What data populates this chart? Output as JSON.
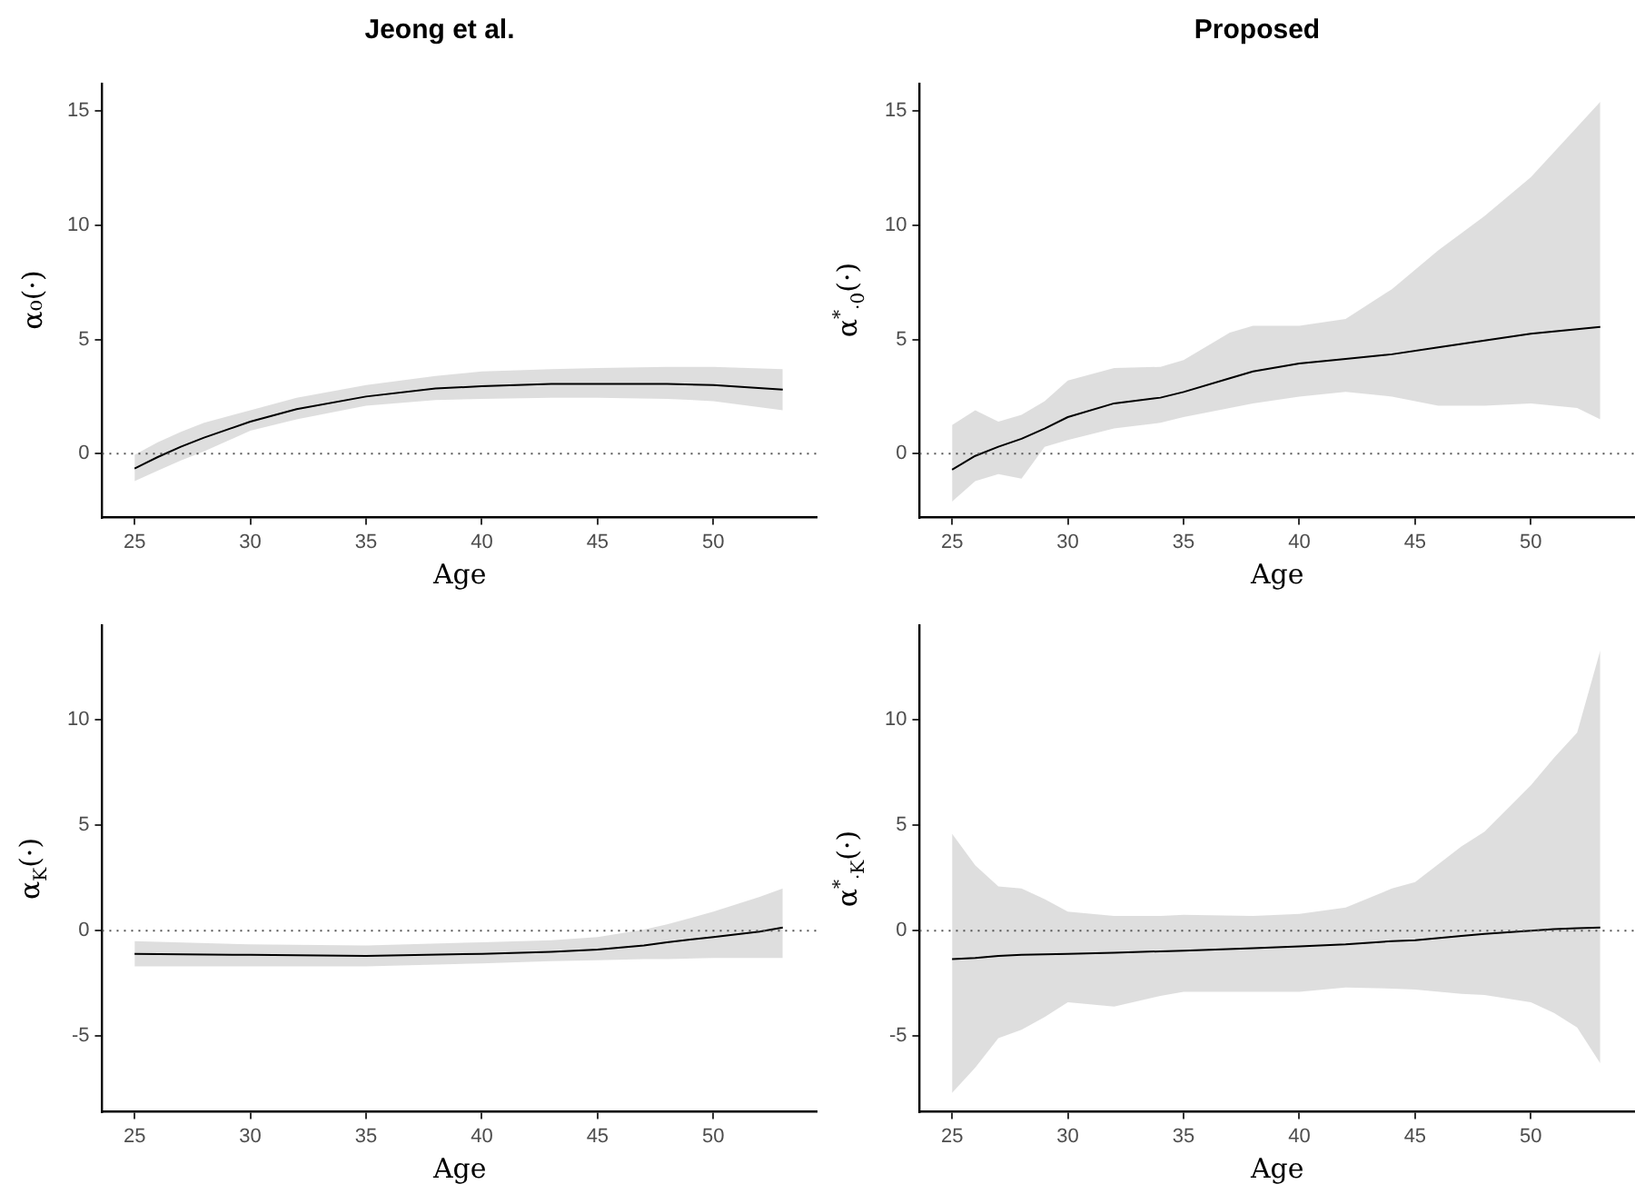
{
  "chart_data": [
    {
      "type": "line",
      "title": "Jeong et al.",
      "xlabel": "Age",
      "ylabel": "α₀(·)",
      "xlim": [
        23.6,
        54.5
      ],
      "xticks": [
        25,
        30,
        35,
        40,
        45,
        50
      ],
      "ylim": [
        -2.8,
        16.2
      ],
      "yticks": [
        0,
        5,
        10,
        15
      ],
      "ref_lines": [
        {
          "axis": "y",
          "value": 0,
          "color": "#555555",
          "line_style": "dotted"
        }
      ],
      "series": [
        {
          "color": "#000000",
          "x": [
            25,
            26,
            27,
            28,
            30,
            32,
            35,
            38,
            40,
            43,
            45,
            48,
            50,
            53
          ],
          "values": [
            -0.65,
            -0.15,
            0.3,
            0.7,
            1.4,
            1.95,
            2.5,
            2.85,
            2.95,
            3.05,
            3.05,
            3.05,
            3.0,
            2.8
          ],
          "upper": [
            -0.05,
            0.5,
            0.95,
            1.35,
            1.9,
            2.45,
            3.0,
            3.4,
            3.6,
            3.7,
            3.75,
            3.8,
            3.8,
            3.7
          ],
          "lower": [
            -1.2,
            -0.75,
            -0.3,
            0.1,
            1.0,
            1.5,
            2.1,
            2.35,
            2.4,
            2.45,
            2.45,
            2.4,
            2.3,
            1.9
          ]
        }
      ]
    },
    {
      "type": "line",
      "title": "Proposed",
      "xlabel": "Age",
      "ylabel": "α$^{*}$$_{·0}$(·)",
      "xlim": [
        23.6,
        54.5
      ],
      "xticks": [
        25,
        30,
        35,
        40,
        45,
        50
      ],
      "ylim": [
        -2.8,
        16.2
      ],
      "yticks": [
        0,
        5,
        10,
        15
      ],
      "ref_lines": [
        {
          "axis": "y",
          "value": 0,
          "color": "#555555",
          "line_style": "dotted"
        }
      ],
      "series": [
        {
          "color": "#000000",
          "x": [
            25,
            26,
            27,
            28,
            29,
            30,
            32,
            34,
            35,
            37,
            38,
            40,
            42,
            44,
            46,
            48,
            50,
            52,
            53
          ],
          "values": [
            -0.7,
            -0.1,
            0.3,
            0.65,
            1.1,
            1.6,
            2.2,
            2.45,
            2.7,
            3.3,
            3.6,
            3.95,
            4.15,
            4.35,
            4.65,
            4.95,
            5.25,
            5.45,
            5.55
          ],
          "upper": [
            1.25,
            1.9,
            1.4,
            1.7,
            2.3,
            3.2,
            3.75,
            3.8,
            4.1,
            5.3,
            5.6,
            5.6,
            5.9,
            7.2,
            8.9,
            10.4,
            12.1,
            14.3,
            15.4
          ],
          "lower": [
            -2.1,
            -1.2,
            -0.9,
            -1.1,
            0.3,
            0.6,
            1.1,
            1.35,
            1.6,
            2.0,
            2.2,
            2.5,
            2.7,
            2.5,
            2.1,
            2.1,
            2.2,
            2.0,
            1.5
          ]
        }
      ]
    },
    {
      "type": "line",
      "xlabel": "Age",
      "ylabel": "α$_{K}$(·)",
      "xlim": [
        23.6,
        54.5
      ],
      "xticks": [
        25,
        30,
        35,
        40,
        45,
        50
      ],
      "ylim": [
        -8.6,
        14.5
      ],
      "yticks": [
        -5,
        0,
        5,
        10
      ],
      "ref_lines": [
        {
          "axis": "y",
          "value": 0,
          "color": "#555555",
          "line_style": "dotted"
        }
      ],
      "series": [
        {
          "color": "#000000",
          "x": [
            25,
            30,
            35,
            40,
            43,
            45,
            47,
            48,
            50,
            52,
            53
          ],
          "values": [
            -1.1,
            -1.15,
            -1.2,
            -1.1,
            -1.0,
            -0.9,
            -0.7,
            -0.55,
            -0.3,
            -0.05,
            0.15
          ],
          "upper": [
            -0.5,
            -0.65,
            -0.7,
            -0.55,
            -0.45,
            -0.3,
            0.05,
            0.3,
            0.9,
            1.6,
            2.0
          ],
          "lower": [
            -1.7,
            -1.7,
            -1.7,
            -1.55,
            -1.45,
            -1.4,
            -1.35,
            -1.35,
            -1.3,
            -1.3,
            -1.3
          ]
        }
      ]
    },
    {
      "type": "line",
      "xlabel": "Age",
      "ylabel": "α$^{*}$$_{·K}$(·)",
      "xlim": [
        23.6,
        54.5
      ],
      "xticks": [
        25,
        30,
        35,
        40,
        45,
        50
      ],
      "ylim": [
        -8.6,
        14.5
      ],
      "yticks": [
        -5,
        0,
        5,
        10
      ],
      "ref_lines": [
        {
          "axis": "y",
          "value": 0,
          "color": "#555555",
          "line_style": "dotted"
        }
      ],
      "series": [
        {
          "color": "#000000",
          "x": [
            25,
            26,
            27,
            28,
            29,
            30,
            32,
            34,
            35,
            38,
            40,
            42,
            44,
            45,
            47,
            48,
            50,
            51,
            52,
            53
          ],
          "values": [
            -1.35,
            -1.3,
            -1.2,
            -1.15,
            -1.12,
            -1.1,
            -1.05,
            -0.98,
            -0.95,
            -0.83,
            -0.75,
            -0.65,
            -0.5,
            -0.45,
            -0.25,
            -0.15,
            0.0,
            0.07,
            0.12,
            0.15
          ],
          "upper": [
            4.6,
            3.1,
            2.1,
            2.0,
            1.5,
            0.9,
            0.7,
            0.7,
            0.75,
            0.7,
            0.8,
            1.1,
            2.0,
            2.3,
            4.0,
            4.7,
            6.9,
            8.2,
            9.4,
            13.3
          ],
          "lower": [
            -7.7,
            -6.5,
            -5.1,
            -4.7,
            -4.1,
            -3.4,
            -3.6,
            -3.1,
            -2.9,
            -2.9,
            -2.9,
            -2.7,
            -2.75,
            -2.8,
            -3.0,
            -3.05,
            -3.4,
            -3.9,
            -4.6,
            -6.3
          ]
        }
      ]
    }
  ]
}
